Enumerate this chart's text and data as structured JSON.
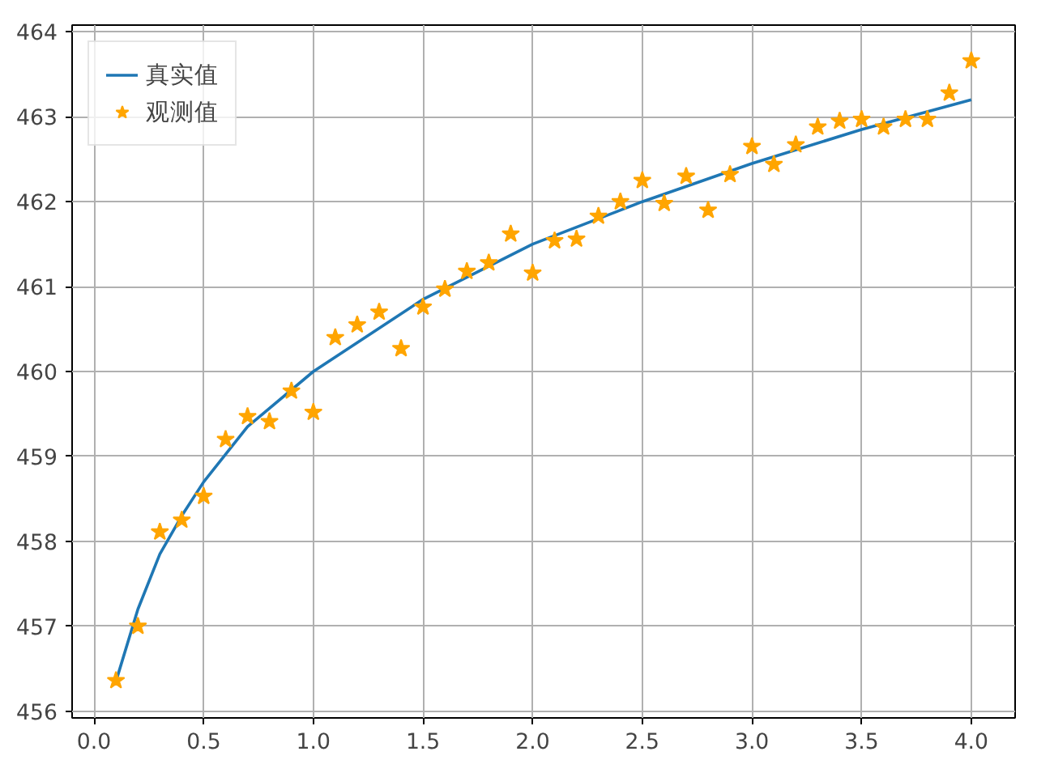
{
  "chart_data": {
    "type": "scatter",
    "xlim": [
      -0.1,
      4.2
    ],
    "ylim": [
      455.92,
      464.08
    ],
    "xticks": [
      {
        "value": 0,
        "label": "0.0"
      },
      {
        "value": 0.5,
        "label": "0.5"
      },
      {
        "value": 1,
        "label": "1.0"
      },
      {
        "value": 1.5,
        "label": "1.5"
      },
      {
        "value": 2,
        "label": "2.0"
      },
      {
        "value": 2.5,
        "label": "2.5"
      },
      {
        "value": 3,
        "label": "3.0"
      },
      {
        "value": 3.5,
        "label": "3.5"
      },
      {
        "value": 4,
        "label": "4.0"
      }
    ],
    "yticks": [
      456,
      457,
      458,
      459,
      460,
      461,
      462,
      463,
      464
    ],
    "grid": true,
    "legend": "top left",
    "series": [
      {
        "name": "真实值",
        "type": "line",
        "color": "#1f77b4",
        "marker": "none",
        "line_style": "solid",
        "x": [
          0.1,
          0.2,
          0.3,
          0.4,
          0.5,
          0.7,
          1.0,
          1.5,
          2.0,
          2.5,
          3.0,
          3.5,
          4.0
        ],
        "values": [
          456.35,
          457.2,
          457.85,
          458.3,
          458.7,
          459.35,
          460.0,
          460.85,
          461.5,
          462.0,
          462.45,
          462.85,
          463.2
        ]
      },
      {
        "name": "观测值",
        "color": "#ffa500",
        "marker": "star",
        "x": [
          0.1,
          0.2,
          0.3,
          0.4,
          0.5,
          0.6,
          0.7,
          0.8,
          0.9,
          1.0,
          1.1,
          1.2,
          1.3,
          1.4,
          1.5,
          1.6,
          1.7,
          1.8,
          1.9,
          2.0,
          2.1,
          2.2,
          2.3,
          2.4,
          2.5,
          2.6,
          2.7,
          2.8,
          2.9,
          3.0,
          3.1,
          3.2,
          3.3,
          3.4,
          3.5,
          3.6,
          3.7,
          3.8,
          3.9,
          4.0
        ],
        "values": [
          456.36,
          457.0,
          458.11,
          458.25,
          458.53,
          459.2,
          459.47,
          459.41,
          459.77,
          459.52,
          460.4,
          460.55,
          460.7,
          460.27,
          460.76,
          460.97,
          461.18,
          461.28,
          461.62,
          461.16,
          461.54,
          461.56,
          461.83,
          462.0,
          462.25,
          461.98,
          462.3,
          461.9,
          462.32,
          462.65,
          462.44,
          462.67,
          462.88,
          462.95,
          462.97,
          462.88,
          462.97,
          462.97,
          463.28,
          463.66
        ]
      }
    ]
  }
}
